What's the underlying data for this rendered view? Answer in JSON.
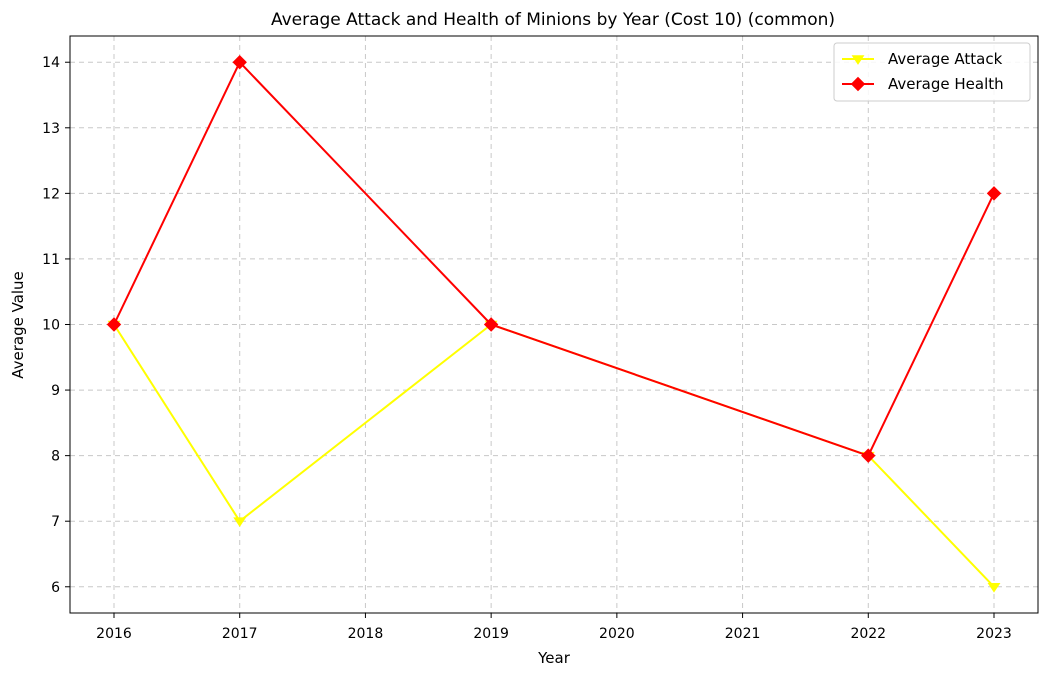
{
  "chart_data": {
    "type": "line",
    "title": "Average Attack and Health of Minions by Year (Cost 10) (common)",
    "xlabel": "Year",
    "ylabel": "Average Value",
    "x": [
      2016,
      2017,
      2019,
      2022,
      2023
    ],
    "xticks": [
      "2016",
      "2017",
      "2018",
      "2019",
      "2020",
      "2021",
      "2022",
      "2023"
    ],
    "yticks": [
      "6",
      "7",
      "8",
      "9",
      "10",
      "11",
      "12",
      "13",
      "14"
    ],
    "xlim": [
      2015.65,
      2023.35
    ],
    "ylim": [
      5.6,
      14.4
    ],
    "grid": true,
    "legend_position": "top-right",
    "series": [
      {
        "name": "Average Attack",
        "values": [
          10,
          7,
          10,
          8,
          6
        ],
        "color": "#ffff00",
        "marker": "triangle-down"
      },
      {
        "name": "Average Health",
        "values": [
          10,
          14,
          10,
          8,
          12
        ],
        "color": "#ff0000",
        "marker": "diamond"
      }
    ]
  }
}
